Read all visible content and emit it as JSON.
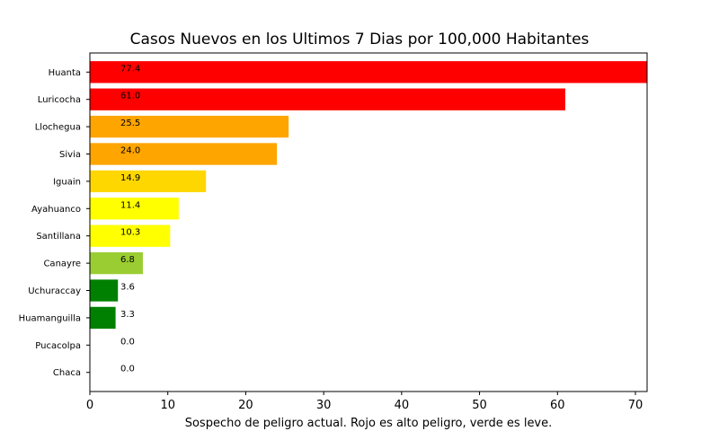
{
  "chart_data": {
    "type": "bar",
    "orientation": "horizontal",
    "title": "Casos Nuevos en los Ultimos 7 Dias por 100,000 Habitantes",
    "xlabel": "Sospecho de peligro actual. Rojo es alto peligro, verde es leve.",
    "ylabel": "",
    "xlim": [
      0,
      71.5
    ],
    "xticks": [
      0,
      10,
      20,
      30,
      40,
      50,
      60,
      70
    ],
    "categories": [
      "Huanta",
      "Luricocha",
      "Llochegua",
      "Sivia",
      "Iguain",
      "Ayahuanco",
      "Santillana",
      "Canayre",
      "Uchuraccay",
      "Huamanguilla",
      "Pucacolpa",
      "Chaca"
    ],
    "values": [
      77.4,
      61.0,
      25.5,
      24.0,
      14.9,
      11.4,
      10.3,
      6.8,
      3.6,
      3.3,
      0.0,
      0.0
    ],
    "value_labels": [
      "77.4",
      "61.0",
      "25.5",
      "24.0",
      "14.9",
      "11.4",
      "10.3",
      "6.8",
      "3.6",
      "3.3",
      "0.0",
      "0.0"
    ],
    "colors": [
      "#ff0000",
      "#ff0000",
      "#ffa500",
      "#ffa500",
      "#ffd700",
      "#ffff00",
      "#ffff00",
      "#9acd32",
      "#008000",
      "#008000",
      "#008000",
      "#008000"
    ],
    "grid": false,
    "legend": "none"
  }
}
